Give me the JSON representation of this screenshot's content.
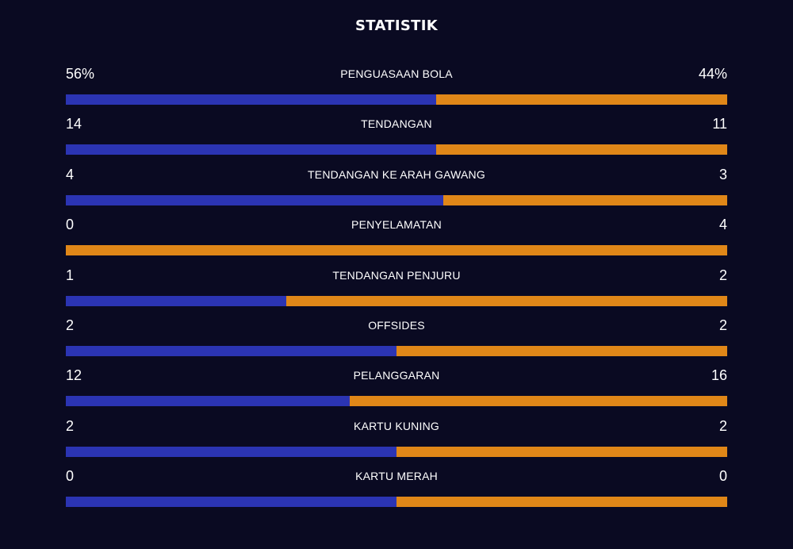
{
  "title": "STATISTIK",
  "colors": {
    "background": "#0a0a22",
    "home": "#2b34b3",
    "away": "#e08718"
  },
  "stats": [
    {
      "label": "PENGUASAAN BOLA",
      "home": "56%",
      "away": "44%",
      "home_share": 0.56
    },
    {
      "label": "TENDANGAN",
      "home": "14",
      "away": "11",
      "home_share": 0.56
    },
    {
      "label": "TENDANGAN KE ARAH GAWANG",
      "home": "4",
      "away": "3",
      "home_share": 0.571
    },
    {
      "label": "PENYELAMATAN",
      "home": "0",
      "away": "4",
      "home_share": 0.0
    },
    {
      "label": "TENDANGAN PENJURU",
      "home": "1",
      "away": "2",
      "home_share": 0.333
    },
    {
      "label": "OFFSIDES",
      "home": "2",
      "away": "2",
      "home_share": 0.5
    },
    {
      "label": "PELANGGARAN",
      "home": "12",
      "away": "16",
      "home_share": 0.429
    },
    {
      "label": "KARTU KUNING",
      "home": "2",
      "away": "2",
      "home_share": 0.5
    },
    {
      "label": "KARTU MERAH",
      "home": "0",
      "away": "0",
      "home_share": 0.5
    }
  ]
}
